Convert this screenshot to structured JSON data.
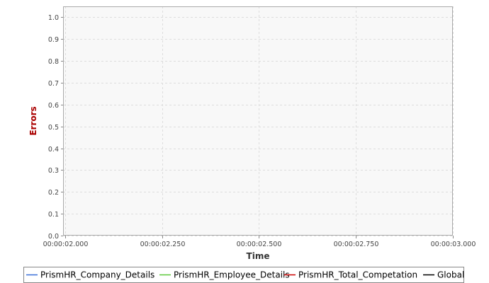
{
  "chart_data": {
    "type": "line",
    "title": "",
    "xlabel": "Time",
    "ylabel": "Errors",
    "x_ticks": [
      "00:00:02.000",
      "00:00:02.250",
      "00:00:02.500",
      "00:00:02.750",
      "00:00:03.000"
    ],
    "x_tick_values": [
      2.0,
      2.25,
      2.5,
      2.75,
      3.0
    ],
    "xlim": [
      1.995,
      3.0
    ],
    "y_ticks": [
      "0.0",
      "0.1",
      "0.2",
      "0.3",
      "0.4",
      "0.5",
      "0.6",
      "0.7",
      "0.8",
      "0.9",
      "1.0"
    ],
    "y_tick_values": [
      0.0,
      0.1,
      0.2,
      0.3,
      0.4,
      0.5,
      0.6,
      0.7,
      0.8,
      0.9,
      1.0
    ],
    "ylim": [
      0.0,
      1.05
    ],
    "grid": true,
    "legend_position": "bottom",
    "series": [
      {
        "name": "PrismHR_Company_Details",
        "color": "#3a6fd8",
        "x": [],
        "y": []
      },
      {
        "name": "PrismHR_Employee_Details",
        "color": "#5cc83a",
        "x": [],
        "y": []
      },
      {
        "name": "PrismHR_Total_Competation",
        "color": "#cc0000",
        "x": [],
        "y": []
      },
      {
        "name": "Global",
        "color": "#000000",
        "x": [],
        "y": []
      }
    ],
    "colors": {
      "plot_background": "#f8f8f8",
      "grid": "#dddddd",
      "frame": "#aaaaaa",
      "ylabel_color": "#aa0000",
      "xlabel_color": "#333333"
    }
  }
}
